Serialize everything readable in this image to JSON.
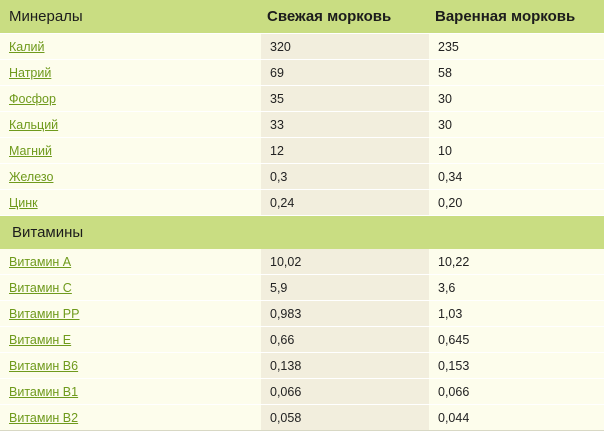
{
  "header": {
    "col_name": "Минералы",
    "col_fresh": "Свежая морковь",
    "col_boiled": "Варенная морковь"
  },
  "minerals": [
    {
      "name": "Калий",
      "fresh": "320",
      "boiled": "235"
    },
    {
      "name": "Натрий",
      "fresh": "69",
      "boiled": "58"
    },
    {
      "name": "Фосфор",
      "fresh": "35",
      "boiled": "30"
    },
    {
      "name": "Кальций",
      "fresh": "33",
      "boiled": "30"
    },
    {
      "name": "Магний",
      "fresh": "12",
      "boiled": "10"
    },
    {
      "name": "Железо",
      "fresh": "0,3",
      "boiled": "0,34"
    },
    {
      "name": "Цинк",
      "fresh": "0,24",
      "boiled": "0,20"
    }
  ],
  "vitamins_section": "Витамины",
  "vitamins": [
    {
      "name": "Витамин А",
      "fresh": "10,02",
      "boiled": "10,22"
    },
    {
      "name": "Витамин С",
      "fresh": "5,9",
      "boiled": "3,6"
    },
    {
      "name": "Витамин РР",
      "fresh": "0,983",
      "boiled": "1,03"
    },
    {
      "name": "Витамин Е",
      "fresh": "0,66",
      "boiled": "0,645"
    },
    {
      "name": "Витамин В6",
      "fresh": "0,138",
      "boiled": "0,153"
    },
    {
      "name": "Витамин В1",
      "fresh": "0,066",
      "boiled": "0,066"
    },
    {
      "name": "Витамин В2",
      "fresh": "0,058",
      "boiled": "0,044"
    }
  ]
}
